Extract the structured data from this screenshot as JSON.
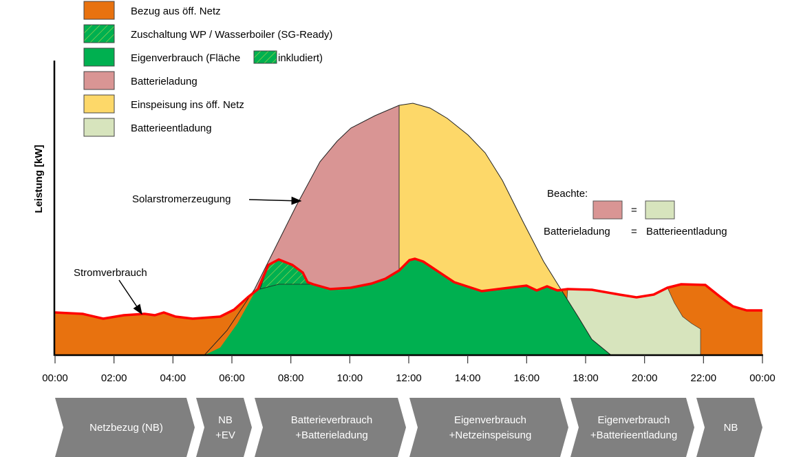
{
  "colors": {
    "grid_import": "#E8720F",
    "self_consumption": "#00B050",
    "battery_charge": "#D99594",
    "feed_in": "#FDD869",
    "battery_discharge": "#D7E4BD",
    "consumption_line": "#FF0000",
    "phase_arrow": "#808080"
  },
  "legend": [
    {
      "label": "Bezug aus öff. Netz",
      "color": "#E8720F",
      "hatched": false
    },
    {
      "label": "Zuschaltung WP / Wasserboiler (SG-Ready)",
      "color": "#00B050",
      "hatched": true
    },
    {
      "label": "Eigenverbrauch (Fläche",
      "label_suffix": "inkludiert)",
      "color": "#00B050",
      "hatched": false
    },
    {
      "label": "Batterieladung",
      "color": "#D99594",
      "hatched": false
    },
    {
      "label": "Einspeisung ins öff. Netz",
      "color": "#FDD869",
      "hatched": false
    },
    {
      "label": "Batterieentladung",
      "color": "#D7E4BD",
      "hatched": false
    }
  ],
  "axis": {
    "ylabel": "Leistung [kW]",
    "xticks": [
      "00:00",
      "02:00",
      "04:00",
      "06:00",
      "08:00",
      "10:00",
      "12:00",
      "14:00",
      "16:00",
      "18:00",
      "20:00",
      "22:00",
      "00:00"
    ]
  },
  "annotations": {
    "solar": "Solarstromerzeugung",
    "consumption": "Stromverbrauch",
    "note_title": "Beachte:",
    "note_equals": "=",
    "note_left": "Batterieladung",
    "note_right": "Batterieentladung"
  },
  "phases": [
    {
      "lines": [
        "Netzbezug (NB)"
      ]
    },
    {
      "lines": [
        "NB",
        "+EV"
      ]
    },
    {
      "lines": [
        "Batterieverbrauch",
        "+Batterieladung"
      ]
    },
    {
      "lines": [
        "Eigenverbrauch",
        "+Netzeinspeisung"
      ]
    },
    {
      "lines": [
        "Eigenverbrauch",
        "+Batterieentladung"
      ]
    },
    {
      "lines": [
        "NB"
      ]
    }
  ]
}
